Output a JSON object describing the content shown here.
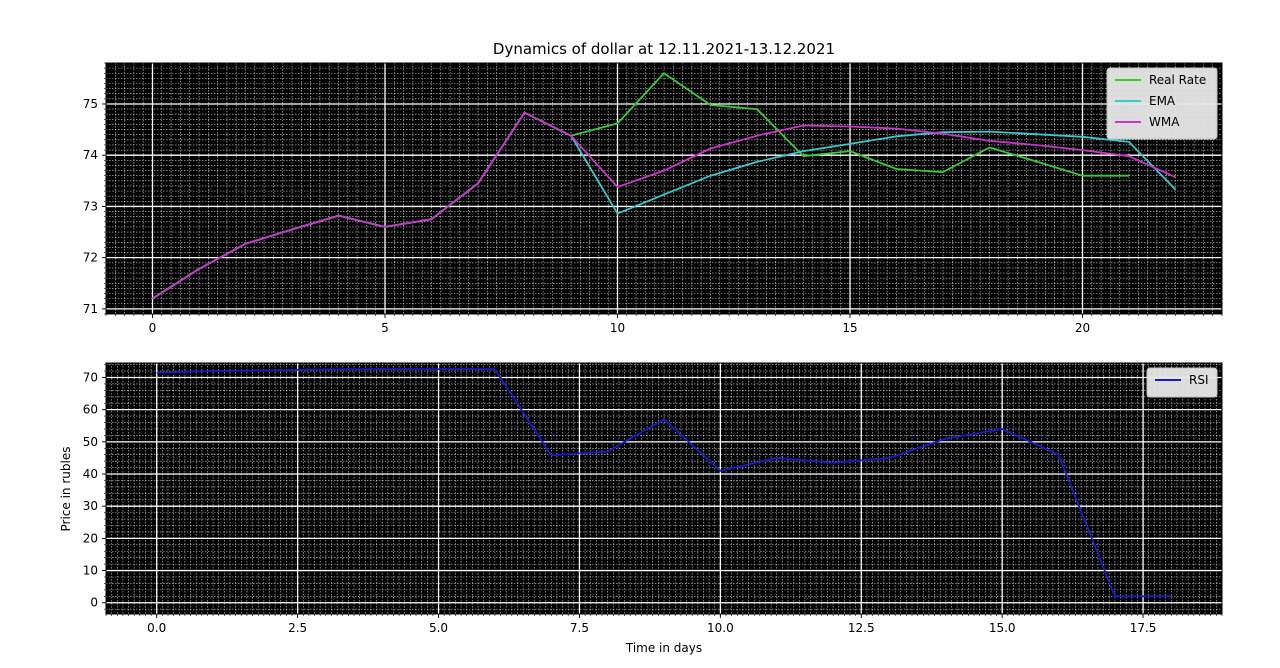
{
  "figure": {
    "title": "Dynamics of dollar at 12.11.2021-13.12.2021",
    "ylabel": "Price in rubles",
    "xlabel": "Time in days"
  },
  "chart_data": [
    {
      "type": "line",
      "title": "Dynamics of dollar at 12.11.2021-13.12.2021",
      "xlim": [
        -1,
        23
      ],
      "ylim": [
        70.9,
        75.8
      ],
      "xticks": [
        0,
        5,
        10,
        15,
        20
      ],
      "xtick_labels": [
        "0",
        "5",
        "10",
        "15",
        "20"
      ],
      "yticks": [
        71,
        72,
        73,
        74,
        75
      ],
      "ytick_labels": [
        "71",
        "72",
        "73",
        "74",
        "75"
      ],
      "grid": true,
      "background": "#000000",
      "legend": "top-right",
      "series": [
        {
          "name": "Real Rate",
          "color": "#33cc33",
          "x": [
            0,
            1,
            2,
            3,
            4,
            5,
            6,
            7,
            8,
            9,
            10,
            11,
            12,
            13,
            14,
            15,
            16,
            17,
            18,
            19,
            20,
            21
          ],
          "y": [
            71.2,
            71.78,
            72.27,
            72.55,
            72.82,
            72.6,
            72.75,
            73.45,
            74.83,
            74.38,
            74.62,
            75.6,
            74.98,
            74.9,
            73.98,
            74.08,
            73.73,
            73.67,
            74.15,
            73.88,
            73.6,
            73.6
          ]
        },
        {
          "name": "EMA",
          "color": "#33cccc",
          "x": [
            0,
            1,
            2,
            3,
            4,
            5,
            6,
            7,
            8,
            9,
            10,
            11,
            12,
            13,
            14,
            15,
            16,
            17,
            18,
            19,
            20,
            21,
            22
          ],
          "y": [
            71.2,
            71.78,
            72.27,
            72.55,
            72.82,
            72.6,
            72.75,
            73.45,
            74.83,
            74.38,
            72.86,
            73.23,
            73.6,
            73.87,
            74.08,
            74.22,
            74.37,
            74.45,
            74.46,
            74.41,
            74.36,
            74.26,
            73.33
          ]
        },
        {
          "name": "WMA",
          "color": "#cc33cc",
          "x": [
            0,
            1,
            2,
            3,
            4,
            5,
            6,
            7,
            8,
            9,
            10,
            11,
            12,
            13,
            14,
            15,
            16,
            17,
            18,
            19,
            20,
            21,
            22
          ],
          "y": [
            71.2,
            71.78,
            72.27,
            72.55,
            72.82,
            72.6,
            72.75,
            73.45,
            74.83,
            74.38,
            73.38,
            73.7,
            74.13,
            74.38,
            74.58,
            74.56,
            74.52,
            74.42,
            74.28,
            74.2,
            74.1,
            73.98,
            73.57
          ]
        }
      ]
    },
    {
      "type": "line",
      "xlabel": "Time in days",
      "ylabel": "Price in rubles",
      "xlim": [
        -0.9,
        18.9
      ],
      "ylim": [
        -3.5,
        74.5
      ],
      "xticks": [
        0,
        2.5,
        5,
        7.5,
        10,
        12.5,
        15,
        17.5
      ],
      "xtick_labels": [
        "0.0",
        "2.5",
        "5.0",
        "7.5",
        "10.0",
        "12.5",
        "15.0",
        "17.5"
      ],
      "yticks": [
        0,
        10,
        20,
        30,
        40,
        50,
        60,
        70
      ],
      "ytick_labels": [
        "0",
        "10",
        "20",
        "30",
        "40",
        "50",
        "60",
        "70"
      ],
      "grid": true,
      "background": "#000000",
      "legend": "top-right",
      "series": [
        {
          "name": "RSI",
          "color": "#1a1acc",
          "x": [
            0,
            1,
            2,
            3,
            4,
            5,
            6,
            7,
            8,
            9,
            10,
            11,
            12,
            13,
            14,
            15,
            16,
            17,
            18
          ],
          "y": [
            71.5,
            72,
            72.2,
            72.5,
            72.6,
            72.6,
            72.6,
            45.8,
            47,
            57,
            41,
            45,
            43.5,
            45,
            51,
            54,
            46,
            2,
            2
          ]
        }
      ]
    }
  ]
}
